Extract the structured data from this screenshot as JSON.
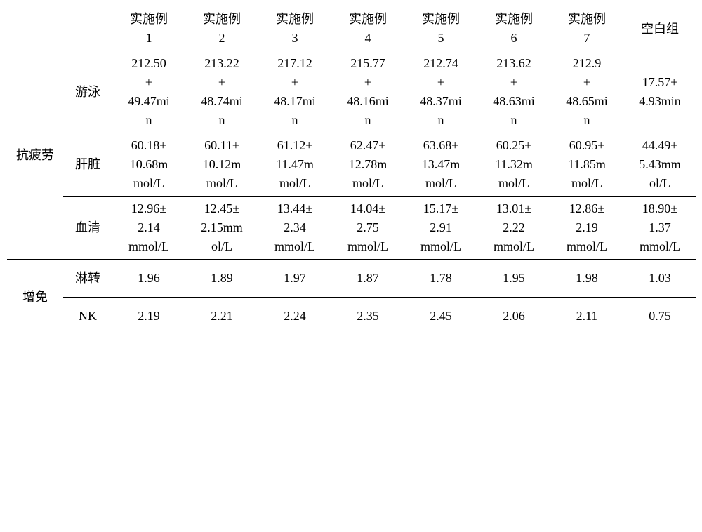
{
  "headers": {
    "ex1": "实施例\n1",
    "ex2": "实施例\n2",
    "ex3": "实施例\n3",
    "ex4": "实施例\n4",
    "ex5": "实施例\n5",
    "ex6": "实施例\n6",
    "ex7": "实施例\n7",
    "blank": "空白组"
  },
  "cat1": "抗疲劳",
  "cat2": "增免",
  "rows": {
    "swim": {
      "label": "游泳",
      "v1": "212.50\n±\n49.47mi\nn",
      "v2": "213.22\n±\n48.74mi\nn",
      "v3": "217.12\n±\n48.17mi\nn",
      "v4": "215.77\n±\n48.16mi\nn",
      "v5": "212.74\n±\n48.37mi\nn",
      "v6": "213.62\n±\n48.63mi\nn",
      "v7": "212.9\n±\n48.65mi\nn",
      "vb": "17.57±\n4.93min"
    },
    "liver": {
      "label": "肝脏",
      "v1": "60.18±\n10.68m\nmol/L",
      "v2": "60.11±\n10.12m\nmol/L",
      "v3": "61.12±\n11.47m\nmol/L",
      "v4": "62.47±\n12.78m\nmol/L",
      "v5": "63.68±\n13.47m\nmol/L",
      "v6": "60.25±\n11.32m\nmol/L",
      "v7": "60.95±\n11.85m\nmol/L",
      "vb": "44.49±\n5.43mm\nol/L"
    },
    "serum": {
      "label": "血清",
      "v1": "12.96±\n2.14\nmmol/L",
      "v2": "12.45±\n2.15mm\nol/L",
      "v3": "13.44±\n2.34\nmmol/L",
      "v4": "14.04±\n2.75\nmmol/L",
      "v5": "15.17±\n2.91\nmmol/L",
      "v6": "13.01±\n2.22\nmmol/L",
      "v7": "12.86±\n2.19\nmmol/L",
      "vb": "18.90±\n1.37\nmmol/L"
    },
    "lz": {
      "label": "淋转",
      "v1": "1.96",
      "v2": "1.89",
      "v3": "1.97",
      "v4": "1.87",
      "v5": "1.78",
      "v6": "1.95",
      "v7": "1.98",
      "vb": "1.03"
    },
    "nk": {
      "label": "NK",
      "v1": "2.19",
      "v2": "2.21",
      "v3": "2.24",
      "v4": "2.35",
      "v5": "2.45",
      "v6": "2.06",
      "v7": "2.11",
      "vb": "0.75"
    }
  }
}
